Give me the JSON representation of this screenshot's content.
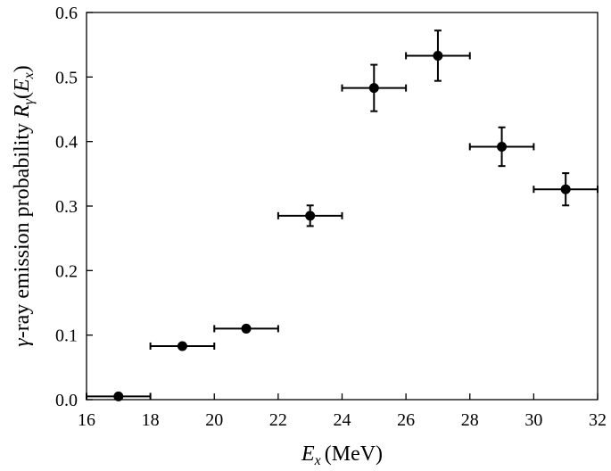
{
  "chart_data": {
    "type": "scatter",
    "x_label": {
      "symbol": "E",
      "subscript": "x",
      "unit": "(MeV)"
    },
    "y_label": {
      "prefix": "γ",
      "text": "-ray emission probability ",
      "symbol": "R",
      "subscript": "γ",
      "arg_open": "(",
      "arg_symbol": "E",
      "arg_subscript": "x",
      "arg_close": ")"
    },
    "xlim": [
      16,
      32
    ],
    "ylim": [
      0,
      0.6
    ],
    "x_ticks": [
      "16",
      "18",
      "20",
      "22",
      "24",
      "26",
      "28",
      "30",
      "32"
    ],
    "y_ticks": [
      "0.0",
      "0.1",
      "0.2",
      "0.3",
      "0.4",
      "0.5",
      "0.6"
    ],
    "grid": false,
    "legend": "none",
    "colors": {
      "marker": "#000000",
      "axis": "#000000"
    },
    "points": [
      {
        "x": 17,
        "y": 0.005,
        "xerr": 1,
        "yerr": 0.002
      },
      {
        "x": 19,
        "y": 0.083,
        "xerr": 1,
        "yerr": 0.003
      },
      {
        "x": 21,
        "y": 0.11,
        "xerr": 1,
        "yerr": 0.003
      },
      {
        "x": 23,
        "y": 0.285,
        "xerr": 1,
        "yerr": 0.016
      },
      {
        "x": 25,
        "y": 0.483,
        "xerr": 1,
        "yerr": 0.036
      },
      {
        "x": 27,
        "y": 0.533,
        "xerr": 1,
        "yerr": 0.039
      },
      {
        "x": 29,
        "y": 0.392,
        "xerr": 1,
        "yerr": 0.03
      },
      {
        "x": 31,
        "y": 0.326,
        "xerr": 1,
        "yerr": 0.025
      }
    ]
  }
}
